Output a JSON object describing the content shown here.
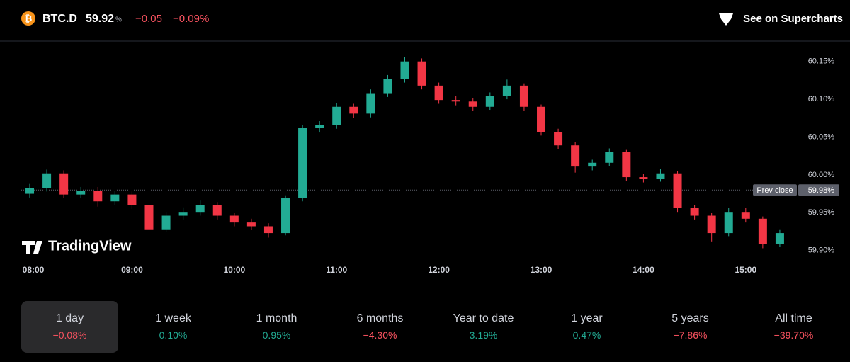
{
  "header": {
    "symbol": "BTC.D",
    "price": 59.92,
    "unit": "%",
    "change": {
      "value": -0.05,
      "value_label": "−0.05"
    },
    "change_percent": {
      "value": -0.09,
      "value_label": "−0.09%"
    },
    "color": "#f7525f",
    "link": "See on Supercharts"
  },
  "watermark": "TradingView",
  "chart_data": {
    "type": "candlestick",
    "up_color": "#22ab94",
    "down_color": "#f23645",
    "x": [
      "08:00",
      "08:10",
      "08:20",
      "08:30",
      "08:40",
      "08:50",
      "09:00",
      "09:10",
      "09:20",
      "09:30",
      "09:40",
      "09:50",
      "10:00",
      "10:10",
      "10:20",
      "10:30",
      "10:40",
      "10:50",
      "11:00",
      "11:10",
      "11:20",
      "11:30",
      "11:40",
      "11:50",
      "12:00",
      "12:10",
      "12:20",
      "12:30",
      "12:40",
      "12:50",
      "13:00",
      "13:10",
      "13:20",
      "13:30",
      "13:40",
      "13:50",
      "14:00",
      "14:10",
      "14:20",
      "14:30",
      "14:40",
      "14:50",
      "15:00",
      "15:10",
      "15:20"
    ],
    "open": [
      59.975,
      59.983,
      60.002,
      59.974,
      59.979,
      59.965,
      59.974,
      59.96,
      59.928,
      59.946,
      59.951,
      59.96,
      59.946,
      59.937,
      59.932,
      59.923,
      59.969,
      60.062,
      60.066,
      60.09,
      60.081,
      60.108,
      60.127,
      60.15,
      60.118,
      60.099,
      60.097,
      60.09,
      60.104,
      60.118,
      60.09,
      60.057,
      60.039,
      60.011,
      60.016,
      60.03,
      59.997,
      59.995,
      60.002,
      59.956,
      59.946,
      59.923,
      59.951,
      59.942,
      59.909
    ],
    "high": [
      59.988,
      60.007,
      60.006,
      59.984,
      59.984,
      59.979,
      59.978,
      59.963,
      59.951,
      59.957,
      59.966,
      59.964,
      59.95,
      59.942,
      59.936,
      59.973,
      60.066,
      60.071,
      60.095,
      60.094,
      60.113,
      60.132,
      60.156,
      60.154,
      60.122,
      60.104,
      60.101,
      60.109,
      60.126,
      60.121,
      60.093,
      60.061,
      60.043,
      60.02,
      60.035,
      60.033,
      60.001,
      60.008,
      60.005,
      59.96,
      59.95,
      59.956,
      59.956,
      59.945,
      59.928
    ],
    "low": [
      59.97,
      59.978,
      59.969,
      59.969,
      59.958,
      59.96,
      59.955,
      59.922,
      59.924,
      59.941,
      59.946,
      59.941,
      59.932,
      59.927,
      59.917,
      59.92,
      59.965,
      60.056,
      60.061,
      60.075,
      60.076,
      60.103,
      60.122,
      60.113,
      60.094,
      60.092,
      60.085,
      60.086,
      60.1,
      60.085,
      60.052,
      60.034,
      60.003,
      60.006,
      60.012,
      59.992,
      59.99,
      59.991,
      59.951,
      59.941,
      59.912,
      59.919,
      59.937,
      59.903,
      59.905
    ],
    "close": [
      59.983,
      60.002,
      59.974,
      59.979,
      59.965,
      59.974,
      59.96,
      59.928,
      59.946,
      59.951,
      59.96,
      59.946,
      59.937,
      59.932,
      59.923,
      59.969,
      60.062,
      60.066,
      60.09,
      60.081,
      60.108,
      60.127,
      60.15,
      60.118,
      60.099,
      60.097,
      60.09,
      60.104,
      60.118,
      60.09,
      60.057,
      60.039,
      60.011,
      60.016,
      60.03,
      59.997,
      59.995,
      60.002,
      59.956,
      59.946,
      59.923,
      59.951,
      59.942,
      59.909,
      59.923
    ],
    "xlim": [
      "07:55",
      "15:30"
    ],
    "xticks": [
      "08:00",
      "09:00",
      "10:00",
      "11:00",
      "12:00",
      "13:00",
      "14:00",
      "15:00"
    ],
    "ylim": [
      59.88,
      60.175
    ],
    "yticks": [
      {
        "value": 59.9,
        "label": "59.90%"
      },
      {
        "value": 59.95,
        "label": "59.95%"
      },
      {
        "value": 60,
        "label": "60.00%"
      },
      {
        "value": 60.05,
        "label": "60.05%"
      },
      {
        "value": 60.1,
        "label": "60.10%"
      },
      {
        "value": 60.15,
        "label": "60.15%"
      }
    ],
    "prev_close": {
      "label": "Prev close",
      "value": 59.98,
      "value_label": "59.98%"
    }
  },
  "periods": [
    {
      "label": "1 day",
      "change": {
        "value": -0.08,
        "label": "−0.08%"
      },
      "color": "#f7525f",
      "selected": true
    },
    {
      "label": "1 week",
      "change": {
        "value": 0.1,
        "label": "0.10%"
      },
      "color": "#22ab94",
      "selected": false
    },
    {
      "label": "1 month",
      "change": {
        "value": 0.95,
        "label": "0.95%"
      },
      "color": "#22ab94",
      "selected": false
    },
    {
      "label": "6 months",
      "change": {
        "value": -4.3,
        "label": "−4.30%"
      },
      "color": "#f7525f",
      "selected": false
    },
    {
      "label": "Year to date",
      "change": {
        "value": 3.19,
        "label": "3.19%"
      },
      "color": "#22ab94",
      "selected": false
    },
    {
      "label": "1 year",
      "change": {
        "value": 0.47,
        "label": "0.47%"
      },
      "color": "#22ab94",
      "selected": false
    },
    {
      "label": "5 years",
      "change": {
        "value": -7.86,
        "label": "−7.86%"
      },
      "color": "#f7525f",
      "selected": false
    },
    {
      "label": "All time",
      "change": {
        "value": -39.7,
        "label": "−39.70%"
      },
      "color": "#f7525f",
      "selected": false
    }
  ]
}
